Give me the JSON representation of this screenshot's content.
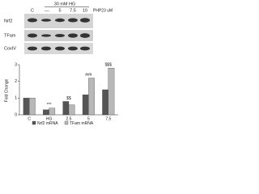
{
  "blot": {
    "treatment": "30 mM HG",
    "lanes": [
      "C",
      "—",
      "5",
      "7.5",
      "10",
      "PHP23 uM"
    ],
    "rows": [
      "Nrf2",
      "TFam",
      "CoxIV"
    ]
  },
  "chart_data": {
    "type": "bar",
    "y_label": "Fold Change",
    "categories": [
      "C",
      "HG",
      "2.5",
      "5",
      "7.5"
    ],
    "series": [
      {
        "name": "Nrf2 mRNA",
        "color": "#555555",
        "values": [
          1,
          0.3,
          0.8,
          1.2,
          1.5
        ]
      },
      {
        "name": "TFam mRNA",
        "color": "#b8b8b8",
        "values": [
          1,
          0.4,
          0.6,
          2.2,
          2.8
        ]
      }
    ],
    "ylim": [
      0,
      3
    ],
    "yticks": [
      0,
      1,
      2,
      3
    ],
    "annotations": [
      "***",
      "$$",
      "###",
      "$$$"
    ]
  }
}
